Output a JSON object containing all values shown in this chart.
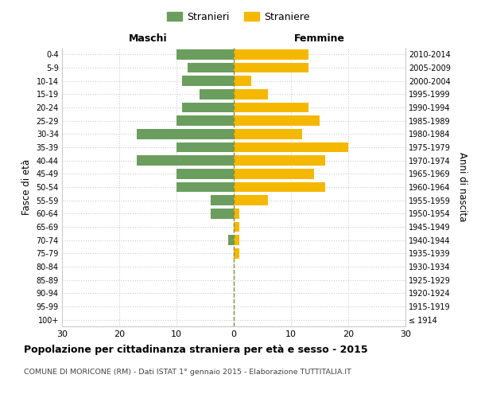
{
  "age_groups": [
    "100+",
    "95-99",
    "90-94",
    "85-89",
    "80-84",
    "75-79",
    "70-74",
    "65-69",
    "60-64",
    "55-59",
    "50-54",
    "45-49",
    "40-44",
    "35-39",
    "30-34",
    "25-29",
    "20-24",
    "15-19",
    "10-14",
    "5-9",
    "0-4"
  ],
  "birth_years": [
    "≤ 1914",
    "1915-1919",
    "1920-1924",
    "1925-1929",
    "1930-1934",
    "1935-1939",
    "1940-1944",
    "1945-1949",
    "1950-1954",
    "1955-1959",
    "1960-1964",
    "1965-1969",
    "1970-1974",
    "1975-1979",
    "1980-1984",
    "1985-1989",
    "1990-1994",
    "1995-1999",
    "2000-2004",
    "2005-2009",
    "2010-2014"
  ],
  "maschi": [
    0,
    0,
    0,
    0,
    0,
    0,
    1,
    0,
    4,
    4,
    10,
    10,
    17,
    10,
    17,
    10,
    9,
    6,
    9,
    8,
    10
  ],
  "femmine": [
    0,
    0,
    0,
    0,
    0,
    1,
    1,
    1,
    1,
    6,
    16,
    14,
    16,
    20,
    12,
    15,
    13,
    6,
    3,
    13,
    13
  ],
  "color_maschi_bar": "#6b9e5e",
  "color_femmine_bar": "#f5b800",
  "background_color": "#ffffff",
  "grid_color": "#cccccc",
  "dashed_line_color": "#8a8a3a",
  "title": "Popolazione per cittadinanza straniera per età e sesso - 2015",
  "subtitle": "COMUNE DI MORICONE (RM) - Dati ISTAT 1° gennaio 2015 - Elaborazione TUTTITALIA.IT",
  "xlabel_maschi": "Maschi",
  "xlabel_femmine": "Femmine",
  "ylabel_left": "Fasce di età",
  "ylabel_right": "Anni di nascita",
  "legend_stranieri": "Stranieri",
  "legend_straniere": "Straniere",
  "xlim": 30,
  "bar_height": 0.75
}
